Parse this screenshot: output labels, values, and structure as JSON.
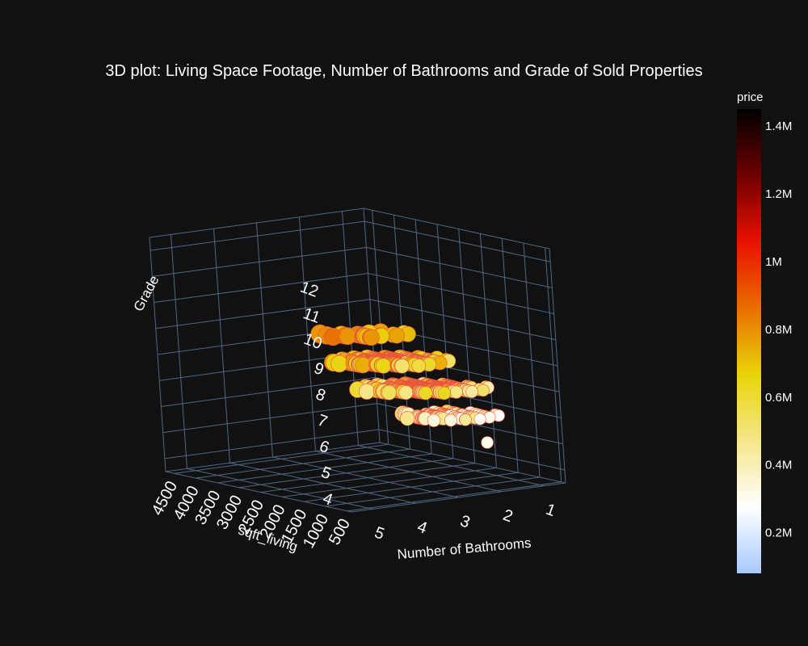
{
  "chart_data": {
    "type": "scatter",
    "projection": "3d",
    "title": "3D plot: Living Space Footage, Number of Bathrooms and Grade of Sold Properties",
    "axes": {
      "x": {
        "label": "Number of Bathrooms",
        "ticks": [
          "1",
          "2",
          "3",
          "4",
          "5"
        ],
        "range": [
          0.5,
          5.5
        ]
      },
      "y": {
        "label": "sqft_living",
        "ticks": [
          "500",
          "1000",
          "1500",
          "2000",
          "2500",
          "3000",
          "3500",
          "4000",
          "4500"
        ],
        "range": [
          400,
          4700
        ]
      },
      "z": {
        "label": "Grade",
        "ticks": [
          "4",
          "5",
          "6",
          "7",
          "8",
          "9",
          "10",
          "11",
          "12"
        ],
        "range": [
          3.5,
          12.5
        ]
      }
    },
    "colorbar": {
      "title": "price",
      "ticks": [
        "0.2M",
        "0.4M",
        "0.6M",
        "0.8M",
        "1M",
        "1.2M",
        "1.4M"
      ],
      "tick_values": [
        200000,
        400000,
        600000,
        800000,
        1000000,
        1200000,
        1400000
      ],
      "range": [
        80000,
        1450000
      ],
      "colorscale": [
        "#a7c9ff",
        "#ffffff",
        "#f5e68a",
        "#e8d40a",
        "#e86e00",
        "#e81000",
        "#6e0000",
        "#000000"
      ]
    },
    "marker_size_encodes": "sqft_living",
    "grid": true,
    "background": "#111111",
    "grid_color": "#506784"
  }
}
